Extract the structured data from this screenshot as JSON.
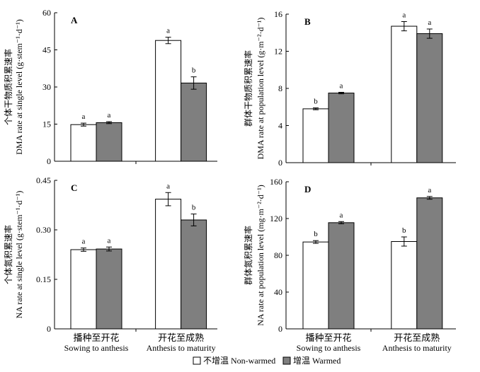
{
  "legend": [
    {
      "name": "不增温 Non-warmed",
      "color": "#ffffff"
    },
    {
      "name": "增温 Warmed",
      "color": "#7f7f7f"
    }
  ],
  "chart_data": [
    {
      "type": "bar",
      "panel_label": "A",
      "ylabel_cn": "个体干物质积累速率",
      "ylabel_en": "DMA rate at single level (g·stem⁻¹·d⁻¹)",
      "ylim": [
        0,
        60
      ],
      "yticks": [
        "0",
        "15",
        "30",
        "45",
        "60"
      ],
      "categories": [
        {
          "cn": "播种至开花",
          "en": "Sowing to anthesis"
        },
        {
          "cn": "开花至成熟",
          "en": "Anthesis to maturity"
        }
      ],
      "show_category_labels": false,
      "series": [
        {
          "values": [
            14.8,
            48.8
          ],
          "errors": [
            0.6,
            1.3
          ],
          "letters": [
            "a",
            "a"
          ]
        },
        {
          "values": [
            15.6,
            31.6
          ],
          "errors": [
            0.4,
            2.5
          ],
          "letters": [
            "a",
            "b"
          ]
        }
      ]
    },
    {
      "type": "bar",
      "panel_label": "B",
      "ylabel_cn": "群体干物质积累速率",
      "ylabel_en": "DMA rate at population level (g·m⁻²·d⁻¹)",
      "ylim": [
        0,
        16
      ],
      "yticks": [
        "0",
        "4",
        "8",
        "12",
        "16"
      ],
      "categories": [
        {
          "cn": "播种至开花",
          "en": "Sowing to anthesis"
        },
        {
          "cn": "开花至成熟",
          "en": "Anthesis to maturity"
        }
      ],
      "show_category_labels": false,
      "series": [
        {
          "values": [
            5.8,
            14.7
          ],
          "errors": [
            0.1,
            0.5
          ],
          "letters": [
            "b",
            "a"
          ]
        },
        {
          "values": [
            7.5,
            13.9
          ],
          "errors": [
            0.08,
            0.5
          ],
          "letters": [
            "a",
            "a"
          ]
        }
      ]
    },
    {
      "type": "bar",
      "panel_label": "C",
      "ylabel_cn": "个体氮积累速率",
      "ylabel_en": "NA rate at single level (g·stem⁻¹·d⁻¹)",
      "ylim": [
        0,
        0.45
      ],
      "yticks": [
        "0",
        "0.15",
        "0.30",
        "0.45"
      ],
      "categories": [
        {
          "cn": "播种至开花",
          "en": "Sowing to anthesis"
        },
        {
          "cn": "开花至成熟",
          "en": "Anthesis to maturity"
        }
      ],
      "show_category_labels": true,
      "series": [
        {
          "values": [
            0.24,
            0.393
          ],
          "errors": [
            0.005,
            0.02
          ],
          "letters": [
            "a",
            "a"
          ]
        },
        {
          "values": [
            0.242,
            0.33
          ],
          "errors": [
            0.006,
            0.018
          ],
          "letters": [
            "a",
            "b"
          ]
        }
      ]
    },
    {
      "type": "bar",
      "panel_label": "D",
      "ylabel_cn": "群体氮积累速率",
      "ylabel_en": "NA rate at population level (mg·m⁻²·d⁻¹)",
      "ylim": [
        0,
        160
      ],
      "yticks": [
        "0",
        "40",
        "80",
        "120",
        "160"
      ],
      "categories": [
        {
          "cn": "播种至开花",
          "en": "Sowing to anthesis"
        },
        {
          "cn": "开花至成熟",
          "en": "Anthesis to maturity"
        }
      ],
      "show_category_labels": true,
      "series": [
        {
          "values": [
            94.5,
            95.0
          ],
          "errors": [
            1.5,
            5.0
          ],
          "letters": [
            "b",
            "b"
          ]
        },
        {
          "values": [
            115.5,
            142.5
          ],
          "errors": [
            1.2,
            1.5
          ],
          "letters": [
            "a",
            "a"
          ]
        }
      ]
    }
  ]
}
